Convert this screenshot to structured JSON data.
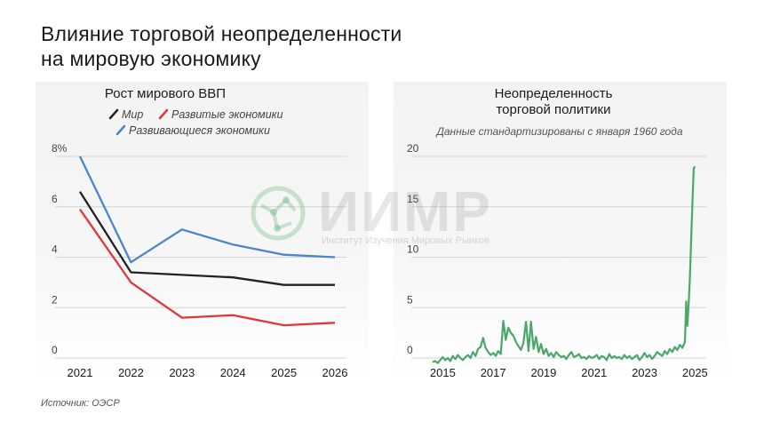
{
  "page": {
    "title_line1": "Влияние торговой неопределенности",
    "title_line2": "на мировую экономику",
    "source": "Источник: ОЭСР",
    "watermark_text": "ИИМР",
    "watermark_subtitle": "Институт Изучения Мировых Рынков"
  },
  "chart_data": [
    {
      "type": "line",
      "title": "Рост мирового ВВП",
      "x": [
        2021,
        2022,
        2023,
        2024,
        2025,
        2026
      ],
      "xticks": [
        "2021",
        "2022",
        "2023",
        "2024",
        "2025",
        "2026"
      ],
      "yticks": [
        "0",
        "2",
        "4",
        "6",
        "8%"
      ],
      "ylim": [
        0,
        8
      ],
      "legend_placement": "top",
      "grid": "horizontal",
      "series": [
        {
          "name": "Мир",
          "color": "#222222",
          "values": [
            6.6,
            3.4,
            3.3,
            3.2,
            2.9,
            2.9
          ]
        },
        {
          "name": "Развитые экономики",
          "color": "#e0353b",
          "values": [
            5.9,
            3.0,
            1.6,
            1.7,
            1.3,
            1.4
          ]
        },
        {
          "name": "Развивающиеся экономики",
          "color": "#4a86d0",
          "values": [
            8.0,
            3.8,
            5.1,
            4.5,
            4.1,
            4.0
          ]
        }
      ]
    },
    {
      "type": "line",
      "title_line1": "Неопределенность",
      "title_line2": "торговой политики",
      "subtitle": "Данные стандартизированы с января 1960 года",
      "xlim": [
        2014.6,
        2025.2
      ],
      "xticks": [
        "2015",
        "2017",
        "2019",
        "2021",
        "2023",
        "2025"
      ],
      "yticks": [
        "0",
        "5",
        "10",
        "15",
        "20"
      ],
      "ylim": [
        0,
        20
      ],
      "grid": "horizontal",
      "series": [
        {
          "color": "#4aa86a",
          "x": [
            2014.6,
            2014.7,
            2014.8,
            2014.9,
            2015.0,
            2015.1,
            2015.2,
            2015.3,
            2015.4,
            2015.5,
            2015.6,
            2015.7,
            2015.8,
            2015.9,
            2016.0,
            2016.1,
            2016.2,
            2016.3,
            2016.4,
            2016.5,
            2016.6,
            2016.7,
            2016.8,
            2016.9,
            2017.0,
            2017.1,
            2017.2,
            2017.3,
            2017.4,
            2017.5,
            2017.6,
            2017.7,
            2017.8,
            2017.9,
            2018.0,
            2018.1,
            2018.2,
            2018.3,
            2018.4,
            2018.5,
            2018.6,
            2018.7,
            2018.8,
            2018.9,
            2019.0,
            2019.1,
            2019.2,
            2019.3,
            2019.4,
            2019.5,
            2019.6,
            2019.7,
            2019.8,
            2019.9,
            2020.0,
            2020.1,
            2020.2,
            2020.3,
            2020.4,
            2020.5,
            2020.6,
            2020.7,
            2020.8,
            2020.9,
            2021.0,
            2021.1,
            2021.2,
            2021.3,
            2021.4,
            2021.5,
            2021.6,
            2021.7,
            2021.8,
            2021.9,
            2022.0,
            2022.1,
            2022.2,
            2022.3,
            2022.4,
            2022.5,
            2022.6,
            2022.7,
            2022.8,
            2022.9,
            2023.0,
            2023.1,
            2023.2,
            2023.3,
            2023.4,
            2023.5,
            2023.6,
            2023.7,
            2023.8,
            2023.9,
            2024.0,
            2024.1,
            2024.2,
            2024.3,
            2024.4,
            2024.5,
            2024.6,
            2024.65,
            2024.7,
            2024.75,
            2024.8,
            2024.85,
            2024.9,
            2024.95,
            2025.0
          ],
          "values": [
            -0.4,
            -0.3,
            -0.5,
            -0.2,
            0.1,
            -0.2,
            0.0,
            -0.3,
            0.2,
            -0.1,
            0.3,
            0.0,
            -0.2,
            0.1,
            0.3,
            0.0,
            0.6,
            0.2,
            0.9,
            1.1,
            2.0,
            1.0,
            0.6,
            0.3,
            0.5,
            0.2,
            0.7,
            0.4,
            3.7,
            1.8,
            3.0,
            2.5,
            2.2,
            1.6,
            1.2,
            0.8,
            1.5,
            3.6,
            0.7,
            3.6,
            0.9,
            2.1,
            0.6,
            1.4,
            0.4,
            0.9,
            0.2,
            0.5,
            0.1,
            0.6,
            0.3,
            0.1,
            0.2,
            -0.1,
            0.3,
            0.6,
            0.1,
            0.2,
            0.4,
            0.0,
            0.1,
            -0.1,
            0.2,
            0.0,
            0.1,
            0.3,
            -0.1,
            0.2,
            0.1,
            -0.2,
            0.4,
            0.0,
            0.2,
            0.0,
            0.1,
            -0.1,
            0.3,
            0.0,
            0.2,
            -0.1,
            0.1,
            0.3,
            -0.2,
            0.1,
            0.5,
            0.1,
            0.3,
            -0.1,
            0.2,
            0.6,
            0.4,
            0.2,
            0.7,
            0.4,
            0.9,
            0.6,
            1.1,
            0.8,
            1.3,
            1.0,
            1.6,
            5.6,
            3.2,
            5.4,
            8.0,
            12.0,
            15.5,
            18.8,
            19.0
          ]
        }
      ]
    }
  ]
}
